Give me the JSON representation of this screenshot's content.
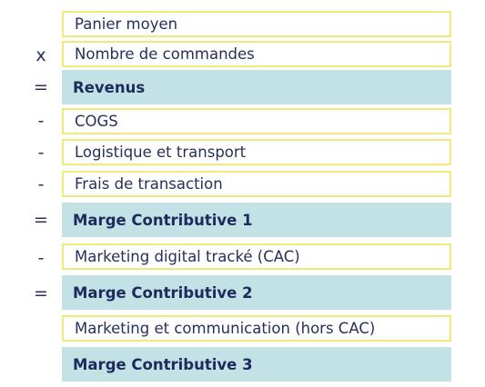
{
  "rows": [
    {
      "operator": "",
      "label": "Panier moyen",
      "kind": "input"
    },
    {
      "operator": "x",
      "label": "Nombre de commandes",
      "kind": "input"
    },
    {
      "operator": "=",
      "label": "Revenus",
      "kind": "result"
    },
    {
      "operator": "-",
      "label": "COGS",
      "kind": "input"
    },
    {
      "operator": "-",
      "label": "Logistique et transport",
      "kind": "input"
    },
    {
      "operator": "-",
      "label": "Frais de transaction",
      "kind": "input"
    },
    {
      "operator": "=",
      "label": "Marge Contributive 1",
      "kind": "result"
    },
    {
      "operator": "-",
      "label": "Marketing digital tracké (CAC)",
      "kind": "input"
    },
    {
      "operator": "=",
      "label": "Marge Contributive 2",
      "kind": "result"
    },
    {
      "operator": "",
      "label": "Marketing et communication (hors CAC)",
      "kind": "input"
    },
    {
      "operator": "",
      "label": "Marge Contributive 3",
      "kind": "result"
    }
  ],
  "colors": {
    "input_border": "#f2e97d",
    "result_fill": "#c2e2e6",
    "text": "#27305a"
  }
}
